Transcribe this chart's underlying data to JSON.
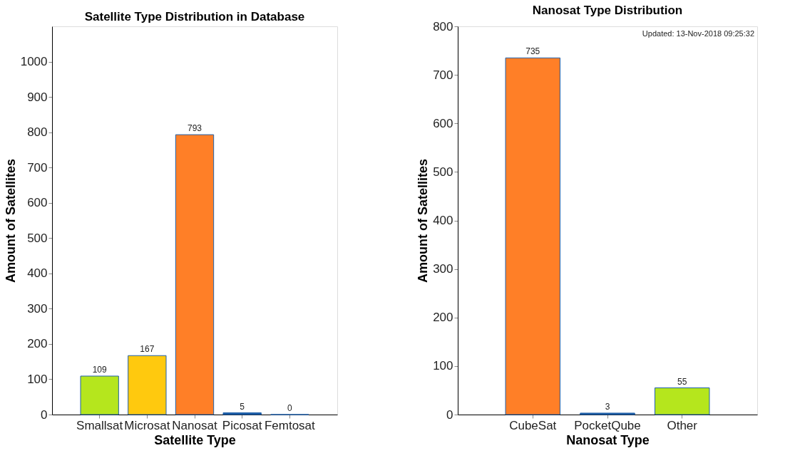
{
  "chart_data": [
    {
      "type": "bar",
      "title": "Satellite Type Distribution in Database",
      "xlabel": "Satellite Type",
      "ylabel": "Amount of Satellites",
      "categories": [
        "Smallsat",
        "Microsat",
        "Nanosat",
        "Picosat",
        "Femtosat"
      ],
      "values": [
        109,
        167,
        793,
        5,
        0
      ],
      "colors": [
        "#b5e61d",
        "#ffc90e",
        "#ff7f27",
        "#1f5fa8",
        "#1f5fa8"
      ],
      "ylim": [
        0,
        1100
      ],
      "yticks": [
        0,
        100,
        200,
        300,
        400,
        500,
        600,
        700,
        800,
        900,
        1000
      ],
      "grid": false,
      "data_labels": true
    },
    {
      "type": "bar",
      "title": "Nanosat Type Distribution",
      "xlabel": "Nanosat Type",
      "ylabel": "Amount of Satellites",
      "categories": [
        "CubeSat",
        "PocketQube",
        "Other"
      ],
      "values": [
        735,
        3,
        55
      ],
      "colors": [
        "#ff7f27",
        "#1f5fa8",
        "#b5e61d"
      ],
      "ylim": [
        0,
        800
      ],
      "yticks": [
        0,
        100,
        200,
        300,
        400,
        500,
        600,
        700,
        800
      ],
      "grid": false,
      "data_labels": true,
      "annotations": [
        "Updated: 13-Nov-2018 09:25:32"
      ]
    }
  ]
}
